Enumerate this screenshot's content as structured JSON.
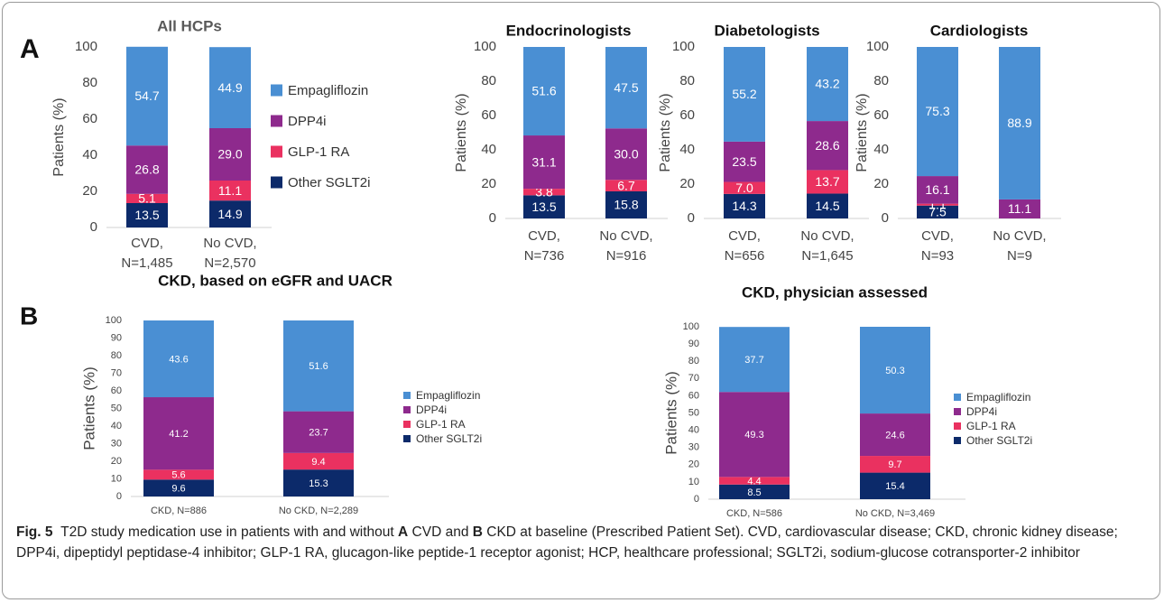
{
  "panel_labels": [
    "A",
    "B"
  ],
  "chart_data": [
    {
      "type": "bar",
      "stacked": true,
      "title": "All HCPs",
      "title_color": "#595959",
      "y_label": "Patients (%)",
      "categories": [
        [
          "CVD,",
          "N=1,485"
        ],
        [
          "No CVD,",
          "N=2,570"
        ]
      ],
      "ylim": [
        0,
        100
      ],
      "yticks": [
        0,
        20,
        40,
        60,
        80,
        100
      ],
      "legend": "right",
      "series": [
        {
          "name": "Empagliflozin",
          "color": "#4a8fd3",
          "values": [
            54.7,
            44.9
          ]
        },
        {
          "name": "DPP4i",
          "color": "#8e2a8d",
          "values": [
            26.8,
            29.0
          ],
          "value_labels": [
            "26.8",
            "29.0"
          ]
        },
        {
          "name": "GLP-1 RA",
          "color": "#ea3160",
          "values": [
            5.1,
            11.1
          ]
        },
        {
          "name": "Other SGLT2i",
          "color": "#0c2a6a",
          "values": [
            13.5,
            14.9
          ]
        }
      ]
    },
    {
      "type": "bar",
      "stacked": true,
      "title": "Endocrinologists",
      "title_color": "#111111",
      "y_label": "Patients (%)",
      "categories": [
        [
          "CVD,",
          "N=736"
        ],
        [
          "No CVD,",
          "N=916"
        ]
      ],
      "ylim": [
        0,
        100
      ],
      "yticks": [
        0,
        20,
        40,
        60,
        80,
        100
      ],
      "series": [
        {
          "name": "Empagliflozin",
          "color": "#4a8fd3",
          "values": [
            51.6,
            47.5
          ]
        },
        {
          "name": "DPP4i",
          "color": "#8e2a8d",
          "values": [
            31.1,
            30.0
          ],
          "value_labels": [
            "31.1",
            "30.0"
          ]
        },
        {
          "name": "GLP-1 RA",
          "color": "#ea3160",
          "values": [
            3.8,
            6.7
          ]
        },
        {
          "name": "Other SGLT2i",
          "color": "#0c2a6a",
          "values": [
            13.5,
            15.8
          ]
        }
      ]
    },
    {
      "type": "bar",
      "stacked": true,
      "title": "Diabetologists",
      "title_color": "#111111",
      "y_label": "Patients (%)",
      "categories": [
        [
          "CVD,",
          "N=656"
        ],
        [
          "No CVD,",
          "N=1,645"
        ]
      ],
      "ylim": [
        0,
        100
      ],
      "yticks": [
        0,
        20,
        40,
        60,
        80,
        100
      ],
      "series": [
        {
          "name": "Empagliflozin",
          "color": "#4a8fd3",
          "values": [
            55.2,
            43.2
          ]
        },
        {
          "name": "DPP4i",
          "color": "#8e2a8d",
          "values": [
            23.5,
            28.6
          ]
        },
        {
          "name": "GLP-1 RA",
          "color": "#ea3160",
          "values": [
            7.0,
            13.7
          ],
          "value_labels": [
            "7.0",
            "13.7"
          ]
        },
        {
          "name": "Other SGLT2i",
          "color": "#0c2a6a",
          "values": [
            14.3,
            14.5
          ]
        }
      ]
    },
    {
      "type": "bar",
      "stacked": true,
      "title": "Cardiologists",
      "title_color": "#111111",
      "y_label": "Patients (%)",
      "categories": [
        [
          "CVD,",
          "N=93"
        ],
        [
          "No CVD,",
          "N=9"
        ]
      ],
      "ylim": [
        0,
        100
      ],
      "yticks": [
        0,
        20,
        40,
        60,
        80,
        100
      ],
      "series": [
        {
          "name": "Empagliflozin",
          "color": "#4a8fd3",
          "values": [
            75.3,
            88.9
          ]
        },
        {
          "name": "DPP4i",
          "color": "#8e2a8d",
          "values": [
            16.1,
            11.1
          ]
        },
        {
          "name": "GLP-1 RA",
          "color": "#ea3160",
          "values": [
            1.1,
            0
          ]
        },
        {
          "name": "Other SGLT2i",
          "color": "#0c2a6a",
          "values": [
            7.5,
            0
          ]
        }
      ]
    },
    {
      "type": "bar",
      "stacked": true,
      "title": "CKD, based on eGFR and UACR",
      "title_color": "#111111",
      "y_label": "Patients (%)",
      "categories": [
        "CKD, N=886",
        "No CKD, N=2,289"
      ],
      "ylim": [
        0,
        100
      ],
      "yticks": [
        0,
        10,
        20,
        30,
        40,
        50,
        60,
        70,
        80,
        90,
        100
      ],
      "legend": "right",
      "series": [
        {
          "name": "Empagliflozin",
          "color": "#4a8fd3",
          "values": [
            43.6,
            51.6
          ]
        },
        {
          "name": "DPP4i",
          "color": "#8e2a8d",
          "values": [
            41.2,
            23.7
          ]
        },
        {
          "name": "GLP-1 RA",
          "color": "#ea3160",
          "values": [
            5.6,
            9.4
          ]
        },
        {
          "name": "Other SGLT2i",
          "color": "#0c2a6a",
          "values": [
            9.6,
            15.3
          ]
        }
      ]
    },
    {
      "type": "bar",
      "stacked": true,
      "title": "CKD, physician assessed",
      "title_color": "#111111",
      "y_label": "Patients (%)",
      "categories": [
        "CKD, N=586",
        "No CKD, N=3,469"
      ],
      "ylim": [
        0,
        100
      ],
      "yticks": [
        0,
        10,
        20,
        30,
        40,
        50,
        60,
        70,
        80,
        90,
        100
      ],
      "legend": "right",
      "series": [
        {
          "name": "Empagliflozin",
          "color": "#4a8fd3",
          "values": [
            37.7,
            50.3
          ]
        },
        {
          "name": "DPP4i",
          "color": "#8e2a8d",
          "values": [
            49.3,
            24.6
          ]
        },
        {
          "name": "GLP-1 RA",
          "color": "#ea3160",
          "values": [
            4.4,
            9.7
          ]
        },
        {
          "name": "Other SGLT2i",
          "color": "#0c2a6a",
          "values": [
            8.5,
            15.4
          ]
        }
      ]
    }
  ],
  "caption": {
    "label": "Fig. 5",
    "panels": [
      "A",
      "B"
    ],
    "text": [
      "T2D study medication use in patients with and without ",
      " CVD and ",
      " CKD at baseline (Prescribed Patient Set). CVD, cardiovascular disease; CKD, chronic kidney disease; DPP4i, dipeptidyl peptidase-4 inhibitor; GLP-1 RA, glucagon-like peptide-1 receptor agonist; HCP, healthcare professional; SGLT2i, sodium-glucose cotransporter-2 inhibitor"
    ]
  }
}
